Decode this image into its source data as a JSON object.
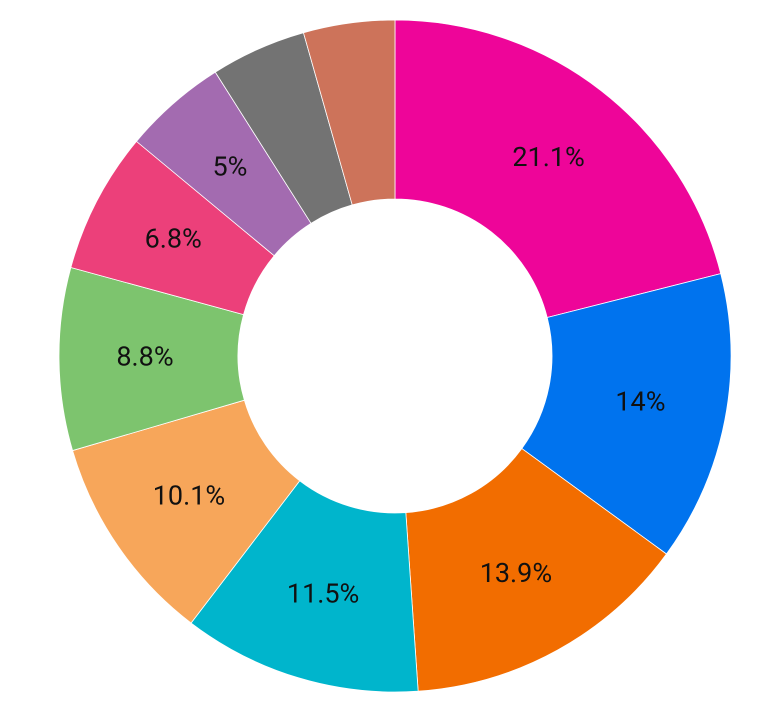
{
  "chart_data": {
    "type": "donut",
    "values": [
      21.1,
      14,
      13.9,
      11.5,
      10.1,
      8.8,
      6.8,
      5,
      4.6,
      4.4
    ],
    "value_labels": [
      "21.1%",
      "14%",
      "13.9%",
      "11.5%",
      "10.1%",
      "8.8%",
      "6.8%",
      "5%",
      null,
      null
    ],
    "colors": [
      "#ee0599",
      "#0073ee",
      "#f26d00",
      "#00b5cc",
      "#f7a65a",
      "#7dc46e",
      "#ec407a",
      "#a36bb0",
      "#737373",
      "#cd735a"
    ]
  }
}
